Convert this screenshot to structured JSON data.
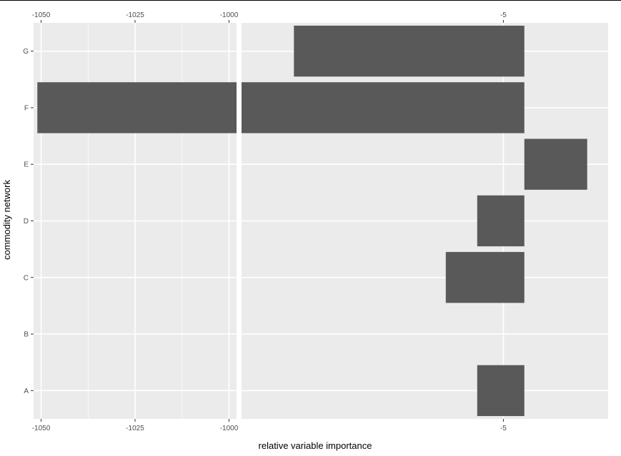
{
  "chart_data": {
    "type": "bar",
    "orientation": "horizontal",
    "xlabel": "relative variable importance",
    "ylabel": "commodity network",
    "categories": [
      "A",
      "B",
      "C",
      "D",
      "E",
      "F",
      "G"
    ],
    "values": [
      -5.5,
      -4.6,
      -6.1,
      -5.5,
      -3.4,
      -1051.0,
      -9.0
    ],
    "x_axis_break": true,
    "left_panel": {
      "xlim": [
        -1052.0,
        -998.0
      ],
      "ticks": [
        -1050,
        -1025,
        -1000
      ]
    },
    "right_panel": {
      "xlim": [
        -10.0,
        -3.0
      ],
      "ticks": [
        -5
      ]
    },
    "grid": true,
    "tick_labels_top_and_bottom": true,
    "bar_color": "#595959",
    "panel_color": "#ebebeb",
    "grid_color": "#ffffff"
  }
}
